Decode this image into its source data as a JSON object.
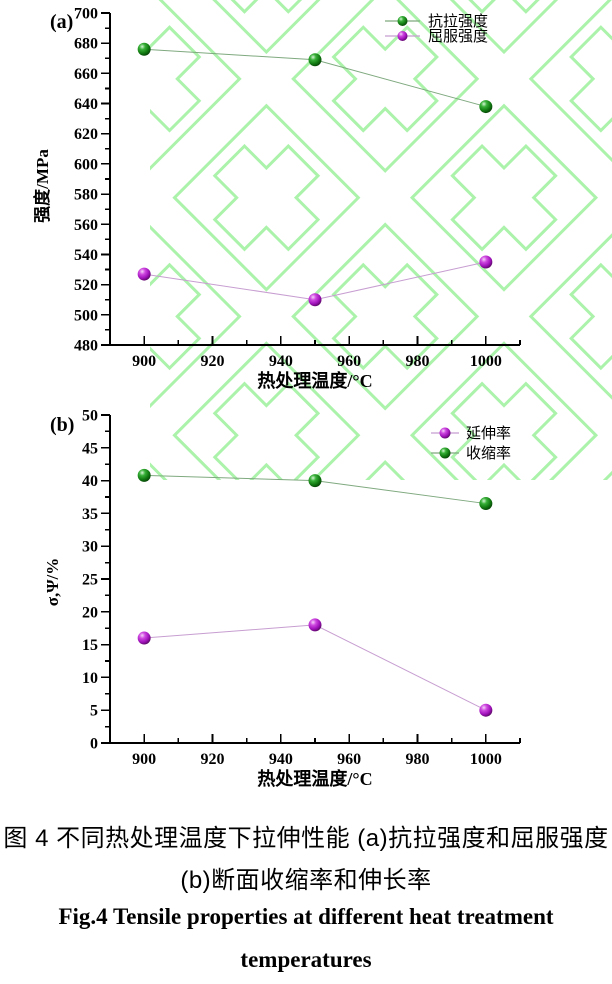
{
  "watermark": {
    "name": "green-diamond-logo-watermark",
    "color": "#9cf09c"
  },
  "colors": {
    "axis": "#000000",
    "series_green_marker": "#117a11",
    "series_green_line": "#7fa97f",
    "series_purple_marker": "#a012bb",
    "series_purple_line": "#c79ed1"
  },
  "caption": {
    "line1_zh": "图 4 不同热处理温度下拉伸性能 (a)抗拉强度和屈服强度",
    "line2_zh": "(b)断面收缩率和伸长率",
    "line3_en": "Fig.4 Tensile properties at different heat treatment",
    "line4_en": "temperatures"
  },
  "chart_data": [
    {
      "id": "a",
      "type": "line",
      "panel": "(a)",
      "xlabel": "热处理温度/°C",
      "ylabel": "强度/MPa",
      "x": [
        900,
        950,
        1000
      ],
      "series": [
        {
          "key": "tensile-strength",
          "name": "抗拉强度",
          "color_key": "green",
          "values": [
            676,
            669,
            638
          ]
        },
        {
          "key": "yield-strength",
          "name": "屈服强度",
          "color_key": "purple",
          "values": [
            527,
            510,
            535
          ]
        }
      ],
      "xlim": [
        890,
        1010
      ],
      "ylim": [
        480,
        700
      ],
      "xticks": {
        "min": 900,
        "max": 1000,
        "major": 20,
        "minor": 10
      },
      "yticks": {
        "major": 20,
        "minor": 10
      },
      "legend_position": "top-right",
      "grid": false
    },
    {
      "id": "b",
      "type": "line",
      "panel": "(b)",
      "xlabel": "热处理温度/°C",
      "ylabel": "σ,Ψ/%",
      "x": [
        900,
        950,
        1000
      ],
      "series": [
        {
          "key": "elongation",
          "name": "延伸率",
          "color_key": "purple",
          "values": [
            16,
            18,
            5
          ]
        },
        {
          "key": "reduction-of-area",
          "name": "收缩率",
          "color_key": "green",
          "values": [
            40.8,
            40,
            36.5
          ]
        }
      ],
      "xlim": [
        890,
        1010
      ],
      "ylim": [
        0,
        50
      ],
      "xticks": {
        "min": 900,
        "max": 1000,
        "major": 20,
        "minor": 10
      },
      "yticks": {
        "major": 5,
        "minor": 2.5
      },
      "legend_position": "top-right",
      "grid": false
    }
  ]
}
